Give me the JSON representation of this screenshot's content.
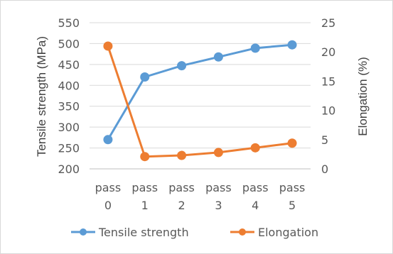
{
  "colors": {
    "tensile": "#5b9bd5",
    "elongation": "#ed7d31",
    "grid": "#d9d9d9",
    "axis_text": "#595959",
    "frame": "#d9d9d9"
  },
  "chart_data": {
    "type": "line",
    "title": "",
    "categories": [
      "pass 0",
      "pass 1",
      "pass 2",
      "pass 3",
      "pass 4",
      "pass 5"
    ],
    "category_lines": [
      [
        "pass",
        "0"
      ],
      [
        "pass",
        "1"
      ],
      [
        "pass",
        "2"
      ],
      [
        "pass",
        "3"
      ],
      [
        "pass",
        "4"
      ],
      [
        "pass",
        "5"
      ]
    ],
    "y_left": {
      "label": "Tensile strength (MPa)",
      "range": [
        200,
        550
      ],
      "ticks": [
        "200",
        "250",
        "300",
        "350",
        "400",
        "450",
        "500",
        "550"
      ]
    },
    "y_right": {
      "label": "Elongation (%)",
      "range": [
        0,
        25
      ],
      "ticks": [
        "0",
        "5",
        "10",
        "15",
        "20",
        "25"
      ]
    },
    "series": [
      {
        "name": "Tensile strength",
        "axis": "left",
        "color": "#5b9bd5",
        "values": [
          270,
          420,
          447,
          468,
          489,
          497
        ]
      },
      {
        "name": "Elongation",
        "axis": "right",
        "color": "#ed7d31",
        "values": [
          21,
          2.1,
          2.3,
          2.8,
          3.6,
          4.4
        ]
      }
    ],
    "grid": true,
    "legend_position": "bottom"
  }
}
